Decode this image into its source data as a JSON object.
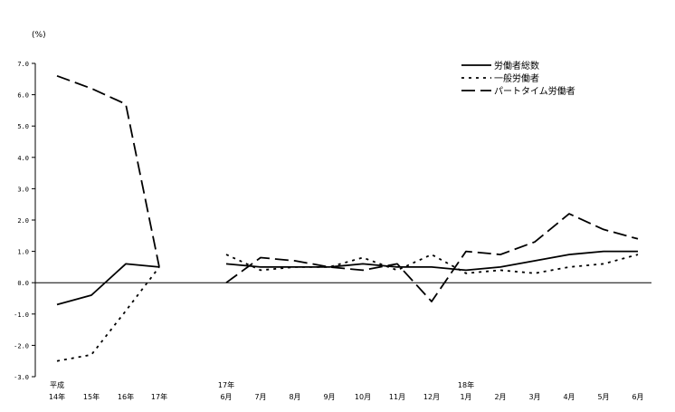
{
  "chart_data": {
    "type": "line",
    "unit_label": "(%)",
    "ylim": [
      -3.0,
      7.0
    ],
    "yticks": [
      "7.0",
      "6.0",
      "5.0",
      "4.0",
      "3.0",
      "2.0",
      "1.0",
      "0.0",
      "-1.0",
      "-2.0",
      "-3.0"
    ],
    "x_groups": [
      {
        "prefix": "平成",
        "labels": [
          "14年",
          "15年",
          "16年",
          "17年"
        ]
      },
      {
        "prefix": "17年",
        "labels": [
          "6月",
          "7月",
          "8月",
          "9月",
          "10月",
          "11月",
          "12月"
        ]
      },
      {
        "prefix": "18年",
        "labels": [
          "1月",
          "2月",
          "3月",
          "4月",
          "5月",
          "6月"
        ]
      }
    ],
    "series": [
      {
        "name": "労働者総数",
        "dash": "solid",
        "segments": [
          [
            -0.7,
            -0.4,
            0.6,
            0.5
          ],
          [
            0.6,
            0.5,
            0.5,
            0.5,
            0.6,
            0.5,
            0.5,
            0.4,
            0.5,
            0.7,
            0.9,
            1.0,
            1.0
          ]
        ]
      },
      {
        "name": "一般労働者",
        "dash": "dotted",
        "segments": [
          [
            -2.5,
            -2.3,
            -0.9,
            0.5
          ],
          [
            0.9,
            0.4,
            0.5,
            0.5,
            0.8,
            0.4,
            0.9,
            0.3,
            0.4,
            0.3,
            0.5,
            0.6,
            0.9
          ]
        ]
      },
      {
        "name": "パートタイム労働者",
        "dash": "dashed",
        "segments": [
          [
            6.6,
            6.2,
            5.7,
            0.5
          ],
          [
            0.0,
            0.8,
            0.7,
            0.5,
            0.4,
            0.6,
            -0.6,
            1.0,
            0.9,
            1.3,
            2.2,
            1.7,
            1.4
          ]
        ]
      }
    ],
    "grid": false,
    "legend_position": "top-right"
  }
}
